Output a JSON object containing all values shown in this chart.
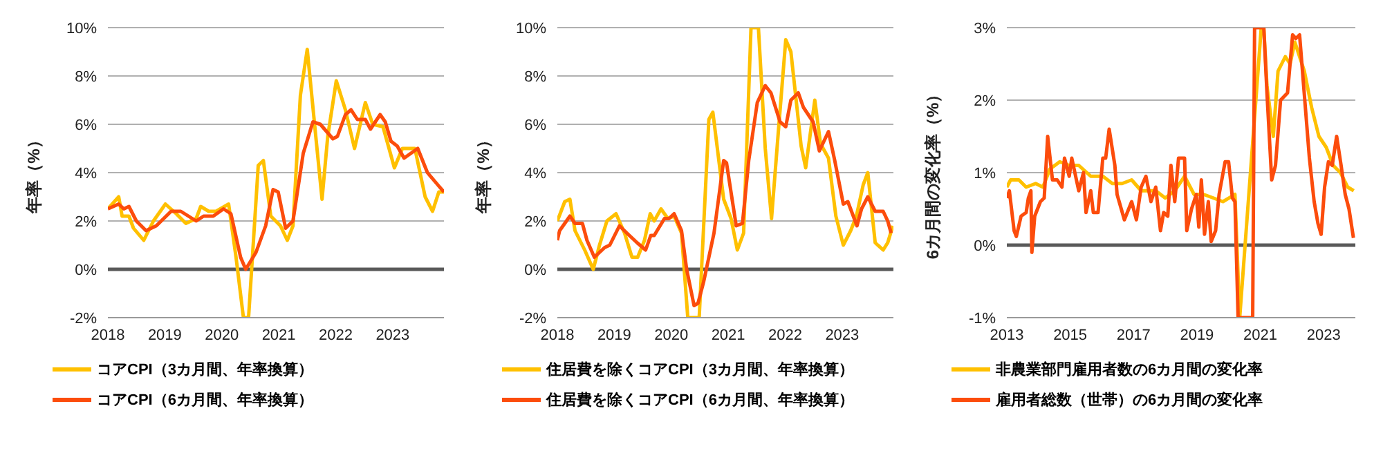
{
  "chart_data": [
    {
      "type": "line",
      "ylabel": "年率（%）",
      "xlim": [
        2018,
        2023.9
      ],
      "xticks": [
        2018,
        2019,
        2020,
        2021,
        2022,
        2023
      ],
      "ylim": [
        -2,
        10
      ],
      "yticks": [
        {
          "value": -2,
          "label": "-2%"
        },
        {
          "value": 0,
          "label": "0%"
        },
        {
          "value": 2,
          "label": "2%"
        },
        {
          "value": 4,
          "label": "4%"
        },
        {
          "value": 6,
          "label": "6%"
        },
        {
          "value": 8,
          "label": "8%"
        },
        {
          "value": 10,
          "label": "10%"
        }
      ],
      "grid": "y",
      "legend": "bottom",
      "marker": "none",
      "line_style": "solid",
      "ref_lines": [
        {
          "axis": "y",
          "value": 0,
          "color": "#595959"
        }
      ],
      "series": [
        {
          "name": "コアCPI（3カ月間、年率換算）",
          "color": "#ffc000",
          "x": [
            2018.0,
            2018.19,
            2018.25,
            2018.37,
            2018.45,
            2018.63,
            2018.8,
            2019.01,
            2019.2,
            2019.37,
            2019.55,
            2019.63,
            2019.77,
            2019.9,
            2020.12,
            2020.25,
            2020.38,
            2020.47,
            2020.64,
            2020.73,
            2020.86,
            2021.03,
            2021.15,
            2021.25,
            2021.38,
            2021.5,
            2021.65,
            2021.76,
            2021.86,
            2022.01,
            2022.17,
            2022.33,
            2022.52,
            2022.65,
            2022.83,
            2023.03,
            2023.17,
            2023.39,
            2023.57,
            2023.7,
            2023.81,
            2023.9
          ],
          "values": [
            2.5,
            3.0,
            2.2,
            2.2,
            1.7,
            1.2,
            2.0,
            2.7,
            2.3,
            1.9,
            2.1,
            2.6,
            2.4,
            2.4,
            2.7,
            0.5,
            -2,
            -2,
            4.3,
            4.5,
            2.2,
            1.8,
            1.2,
            1.8,
            7.2,
            9.1,
            5.5,
            2.9,
            5.5,
            7.8,
            6.6,
            5.0,
            6.9,
            6.0,
            5.9,
            4.2,
            5.0,
            5.0,
            3.0,
            2.4,
            3.2,
            3.2
          ]
        },
        {
          "name": "コアCPI（6カ月間、年率換算）",
          "color": "#fc4c0c",
          "x": [
            2018.0,
            2018.19,
            2018.28,
            2018.37,
            2018.5,
            2018.67,
            2018.85,
            2019.11,
            2019.28,
            2019.55,
            2019.68,
            2019.85,
            2020.03,
            2020.16,
            2020.33,
            2020.42,
            2020.6,
            2020.77,
            2020.9,
            2020.99,
            2021.12,
            2021.25,
            2021.43,
            2021.6,
            2021.73,
            2021.95,
            2022.03,
            2022.17,
            2022.27,
            2022.38,
            2022.52,
            2022.61,
            2022.78,
            2022.87,
            2022.97,
            2023.08,
            2023.2,
            2023.44,
            2023.61,
            2023.79,
            2023.9
          ],
          "values": [
            2.5,
            2.7,
            2.5,
            2.6,
            2.0,
            1.6,
            1.8,
            2.4,
            2.4,
            2.0,
            2.2,
            2.2,
            2.5,
            2.3,
            0.5,
            0.0,
            0.7,
            1.8,
            3.3,
            3.2,
            1.7,
            2.0,
            4.8,
            6.1,
            6.0,
            5.4,
            5.5,
            6.4,
            6.6,
            6.2,
            6.2,
            5.8,
            6.4,
            6.1,
            5.3,
            5.1,
            4.6,
            5.0,
            4.0,
            3.5,
            3.2
          ]
        }
      ]
    },
    {
      "type": "line",
      "ylabel": "年率（%）",
      "xlim": [
        2018,
        2023.9
      ],
      "xticks": [
        2018,
        2019,
        2020,
        2021,
        2022,
        2023
      ],
      "ylim": [
        -2,
        10
      ],
      "yticks": [
        {
          "value": -2,
          "label": "-2%"
        },
        {
          "value": 0,
          "label": "0%"
        },
        {
          "value": 2,
          "label": "2%"
        },
        {
          "value": 4,
          "label": "4%"
        },
        {
          "value": 6,
          "label": "6%"
        },
        {
          "value": 8,
          "label": "8%"
        },
        {
          "value": 10,
          "label": "10%"
        }
      ],
      "grid": "y",
      "legend": "bottom",
      "marker": "none",
      "line_style": "solid",
      "ref_lines": [
        {
          "axis": "y",
          "value": 0,
          "color": "#595959"
        }
      ],
      "series": [
        {
          "name": "住居費を除くコアCPI（3カ月間、年率換算）",
          "color": "#ffc000",
          "x": [
            2018.0,
            2018.13,
            2018.22,
            2018.31,
            2018.48,
            2018.63,
            2018.74,
            2018.87,
            2019.03,
            2019.18,
            2019.31,
            2019.41,
            2019.53,
            2019.63,
            2019.7,
            2019.82,
            2019.94,
            2020.05,
            2020.18,
            2020.29,
            2020.49,
            2020.66,
            2020.73,
            2020.92,
            2021.05,
            2021.16,
            2021.27,
            2021.4,
            2021.53,
            2021.65,
            2021.76,
            2021.89,
            2022.01,
            2022.1,
            2022.28,
            2022.36,
            2022.52,
            2022.62,
            2022.76,
            2022.89,
            2023.02,
            2023.15,
            2023.25,
            2023.37,
            2023.45,
            2023.58,
            2023.72,
            2023.8,
            2023.89
          ],
          "values": [
            2.0,
            2.8,
            2.9,
            1.6,
            0.8,
            0.0,
            1.0,
            2.0,
            2.3,
            1.5,
            0.5,
            0.5,
            1.2,
            2.3,
            2.0,
            2.5,
            2.1,
            2.2,
            1.5,
            -2,
            -2,
            6.2,
            6.5,
            2.9,
            2.1,
            0.8,
            1.5,
            10,
            10,
            5.0,
            2.1,
            6.0,
            9.5,
            9.0,
            5.1,
            4.2,
            7.0,
            5.2,
            4.6,
            2.2,
            1.0,
            1.6,
            2.2,
            3.5,
            4.0,
            1.1,
            0.8,
            1.1,
            1.8
          ]
        },
        {
          "name": "住居費を除くコアCPI（6カ月間、年率換算）",
          "color": "#fc4c0c",
          "x": [
            2018.0,
            2018.04,
            2018.22,
            2018.31,
            2018.44,
            2018.52,
            2018.65,
            2018.83,
            2018.92,
            2019.09,
            2019.22,
            2019.4,
            2019.55,
            2019.64,
            2019.7,
            2019.88,
            2019.96,
            2020.05,
            2020.18,
            2020.27,
            2020.4,
            2020.47,
            2020.57,
            2020.75,
            2020.92,
            2020.97,
            2021.14,
            2021.25,
            2021.36,
            2021.51,
            2021.65,
            2021.75,
            2021.91,
            2022.01,
            2022.1,
            2022.23,
            2022.32,
            2022.49,
            2022.6,
            2022.76,
            2022.87,
            2023.02,
            2023.1,
            2023.26,
            2023.34,
            2023.45,
            2023.58,
            2023.72,
            2023.8,
            2023.86
          ],
          "values": [
            1.2,
            1.6,
            2.2,
            1.9,
            1.9,
            1.2,
            0.5,
            0.9,
            1.0,
            1.8,
            1.5,
            1.1,
            0.8,
            1.4,
            1.4,
            2.1,
            2.1,
            2.3,
            1.6,
            0.0,
            -1.5,
            -1.4,
            -0.5,
            1.5,
            4.5,
            4.4,
            1.8,
            1.9,
            4.5,
            6.9,
            7.6,
            7.3,
            6.1,
            5.9,
            7.0,
            7.3,
            6.7,
            6.1,
            4.9,
            5.7,
            4.5,
            2.7,
            2.8,
            1.8,
            2.5,
            3.0,
            2.4,
            2.4,
            2.0,
            1.5
          ]
        }
      ]
    },
    {
      "type": "line",
      "ylabel": "6カ月間の変化率（%）",
      "xlim": [
        2013,
        2024
      ],
      "xticks": [
        2013,
        2015,
        2017,
        2019,
        2021,
        2023
      ],
      "ylim": [
        -1,
        3
      ],
      "yticks": [
        {
          "value": -1,
          "label": "-1%"
        },
        {
          "value": 0,
          "label": "0%"
        },
        {
          "value": 1,
          "label": "1%"
        },
        {
          "value": 2,
          "label": "2%"
        },
        {
          "value": 3,
          "label": "3%"
        }
      ],
      "grid": "y",
      "legend": "bottom",
      "marker": "none",
      "line_style": "solid",
      "ref_lines": [
        {
          "axis": "y",
          "value": 0,
          "color": "#595959"
        }
      ],
      "series": [
        {
          "name": "非農業部門雇用者数の6カ月間の変化率",
          "color": "#ffc000",
          "x": [
            2013.0,
            2013.12,
            2013.38,
            2013.61,
            2013.91,
            2014.14,
            2014.36,
            2014.67,
            2014.97,
            2015.27,
            2015.65,
            2016.03,
            2016.33,
            2016.64,
            2016.94,
            2017.24,
            2017.7,
            2018.0,
            2018.3,
            2018.61,
            2018.91,
            2019.21,
            2019.52,
            2019.82,
            2020.2,
            2020.35,
            2021.03,
            2021.11,
            2021.21,
            2021.41,
            2021.56,
            2021.79,
            2021.94,
            2022.09,
            2022.39,
            2022.62,
            2022.85,
            2023.08,
            2023.3,
            2023.53,
            2023.76,
            2023.95
          ],
          "values": [
            0.8,
            0.9,
            0.9,
            0.8,
            0.85,
            0.8,
            1.05,
            1.15,
            1.1,
            1.1,
            0.95,
            0.95,
            0.85,
            0.85,
            0.9,
            0.75,
            0.75,
            0.65,
            0.75,
            0.95,
            0.7,
            0.7,
            0.65,
            0.6,
            0.7,
            -1,
            3,
            3,
            2.2,
            1.5,
            2.4,
            2.6,
            2.5,
            2.8,
            2.4,
            1.9,
            1.5,
            1.35,
            1.1,
            1.0,
            0.8,
            0.75
          ]
        },
        {
          "name": "雇用者総数（世帯）の6カ月間の変化率",
          "color": "#fc4c0c",
          "x": [
            2013.0,
            2013.08,
            2013.23,
            2013.3,
            2013.45,
            2013.61,
            2013.68,
            2013.76,
            2013.79,
            2013.88,
            2014.06,
            2014.18,
            2014.29,
            2014.44,
            2014.59,
            2014.74,
            2014.82,
            2014.97,
            2015.05,
            2015.27,
            2015.42,
            2015.5,
            2015.65,
            2015.73,
            2015.88,
            2016.03,
            2016.12,
            2016.23,
            2016.41,
            2016.48,
            2016.71,
            2016.94,
            2017.09,
            2017.24,
            2017.39,
            2017.55,
            2017.7,
            2017.85,
            2017.95,
            2018.08,
            2018.18,
            2018.3,
            2018.42,
            2018.61,
            2018.68,
            2018.83,
            2018.98,
            2019.06,
            2019.14,
            2019.24,
            2019.36,
            2019.45,
            2019.59,
            2019.7,
            2019.89,
            2020.0,
            2020.12,
            2020.2,
            2020.3,
            2020.76,
            2020.82,
            2021.11,
            2021.21,
            2021.36,
            2021.48,
            2021.64,
            2021.86,
            2022.02,
            2022.12,
            2022.24,
            2022.55,
            2022.7,
            2022.82,
            2022.92,
            2023.03,
            2023.15,
            2023.27,
            2023.41,
            2023.55,
            2023.68,
            2023.8,
            2023.94
          ],
          "values": [
            0.65,
            0.75,
            0.2,
            0.12,
            0.4,
            0.45,
            0.65,
            0.75,
            -0.1,
            0.4,
            0.6,
            0.65,
            1.5,
            0.9,
            0.9,
            0.8,
            1.2,
            0.95,
            1.2,
            0.75,
            1.0,
            0.45,
            0.75,
            0.45,
            0.45,
            1.2,
            1.2,
            1.6,
            1.1,
            0.7,
            0.35,
            0.6,
            0.35,
            0.8,
            0.95,
            0.6,
            0.8,
            0.2,
            0.45,
            0.4,
            1.1,
            0.6,
            1.2,
            1.2,
            0.2,
            0.5,
            0.7,
            0.25,
            0.9,
            0.15,
            0.6,
            0.05,
            0.2,
            0.7,
            1.15,
            1.15,
            0.65,
            0.6,
            -1,
            -1,
            3,
            3,
            2.1,
            0.9,
            1.1,
            2.0,
            2.1,
            2.9,
            2.85,
            2.9,
            1.2,
            0.6,
            0.3,
            0.15,
            0.8,
            1.15,
            1.1,
            1.5,
            1.1,
            0.7,
            0.5,
            0.1
          ]
        }
      ]
    }
  ]
}
